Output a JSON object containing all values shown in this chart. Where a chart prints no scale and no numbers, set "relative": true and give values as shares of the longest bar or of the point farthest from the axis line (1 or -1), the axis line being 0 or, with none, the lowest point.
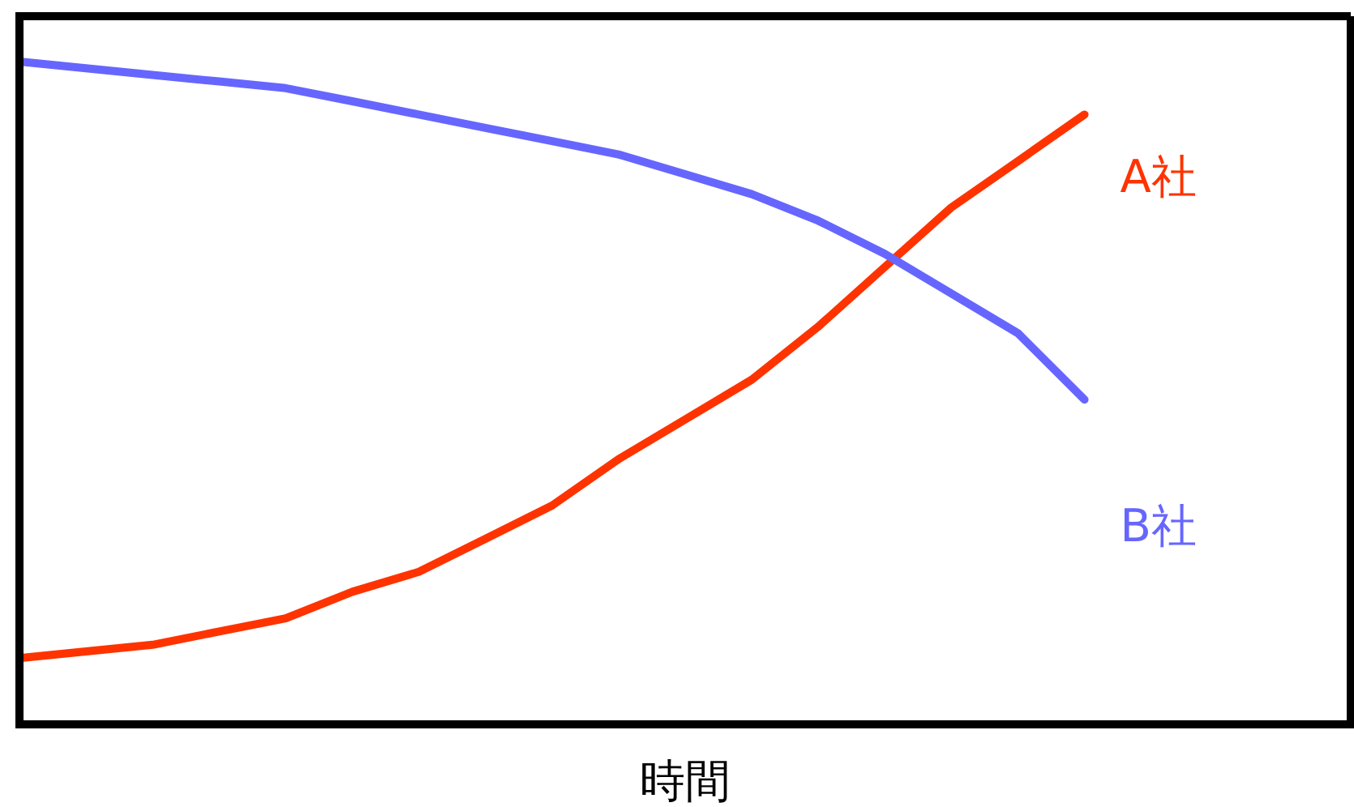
{
  "chart_data": {
    "type": "line",
    "relative": true,
    "xlabel": "時間",
    "categories": [
      null,
      null,
      null,
      null,
      null,
      null,
      null,
      null,
      null,
      null,
      null,
      null,
      null,
      null,
      null,
      null,
      null,
      null,
      null,
      null,
      null
    ],
    "series": [
      {
        "name": "A社",
        "color": "#ff3300",
        "values": [
          0.1,
          0.11,
          0.12,
          0.14,
          0.16,
          0.2,
          0.23,
          0.28,
          0.33,
          0.4,
          0.46,
          0.52,
          0.6,
          0.69,
          0.78,
          0.85,
          0.92,
          null,
          null,
          null,
          null
        ]
      },
      {
        "name": "B社",
        "color": "#6666ff",
        "values": [
          1,
          0.99,
          0.98,
          0.97,
          0.96,
          0.94,
          0.92,
          0.9,
          0.88,
          0.86,
          0.83,
          0.8,
          0.76,
          0.71,
          0.65,
          0.59,
          0.49,
          null,
          null,
          null,
          null
        ]
      }
    ]
  }
}
